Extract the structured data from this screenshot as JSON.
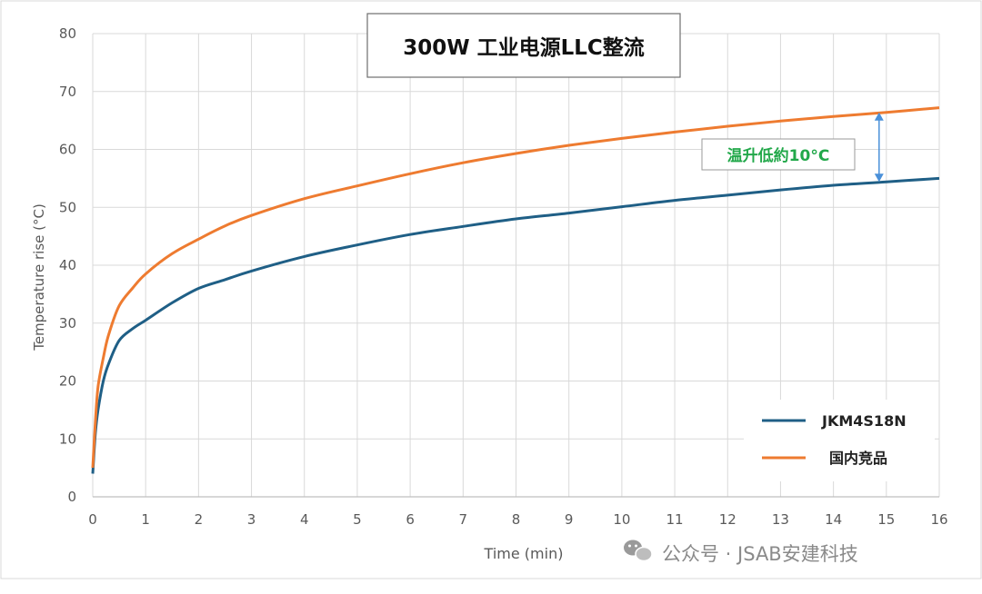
{
  "chart_data": {
    "type": "line",
    "title": "300W 工业电源LLC整流",
    "xlabel": "Time (min)",
    "ylabel": "Temperature rise (°C)",
    "xlim": [
      0,
      16
    ],
    "ylim": [
      0,
      80
    ],
    "x_ticks": [
      0,
      1,
      2,
      3,
      4,
      5,
      6,
      7,
      8,
      9,
      10,
      11,
      12,
      13,
      14,
      15,
      16
    ],
    "y_ticks": [
      0,
      10,
      20,
      30,
      40,
      50,
      60,
      70,
      80
    ],
    "grid": true,
    "legend_position": "bottom-right",
    "series": [
      {
        "name": "JKM4S18N",
        "color": "#1f5f86",
        "x": [
          0,
          0.05,
          0.1,
          0.2,
          0.3,
          0.5,
          0.75,
          1,
          1.5,
          2,
          2.5,
          3,
          4,
          5,
          6,
          7,
          8,
          9,
          10,
          11,
          12,
          13,
          14,
          15,
          16
        ],
        "y": [
          4,
          11,
          15,
          20,
          23,
          27,
          29,
          30.5,
          33.5,
          36,
          37.5,
          39,
          41.5,
          43.5,
          45.3,
          46.7,
          48,
          49,
          50.1,
          51.2,
          52.1,
          53,
          53.8,
          54.4,
          55
        ]
      },
      {
        "name": "国内竞品",
        "color": "#ee7b30",
        "x": [
          0,
          0.05,
          0.1,
          0.2,
          0.3,
          0.5,
          0.75,
          1,
          1.5,
          2,
          2.5,
          3,
          4,
          5,
          6,
          7,
          8,
          9,
          10,
          11,
          12,
          13,
          14,
          15,
          16
        ],
        "y": [
          5,
          13,
          19,
          24,
          28,
          33,
          36,
          38.5,
          42,
          44.5,
          46.8,
          48.6,
          51.5,
          53.7,
          55.8,
          57.7,
          59.3,
          60.7,
          61.9,
          63,
          64,
          64.9,
          65.7,
          66.4,
          67.2
        ]
      }
    ],
    "annotation": {
      "label": "温升低約10°C",
      "label_color": "#22a84a",
      "arrow_color": "#4a90d9",
      "x": 15,
      "y_from": 54.4,
      "y_to": 66.4
    }
  },
  "watermark": {
    "text": "公众号 · JSAB安建科技",
    "icon": "wechat-icon"
  }
}
